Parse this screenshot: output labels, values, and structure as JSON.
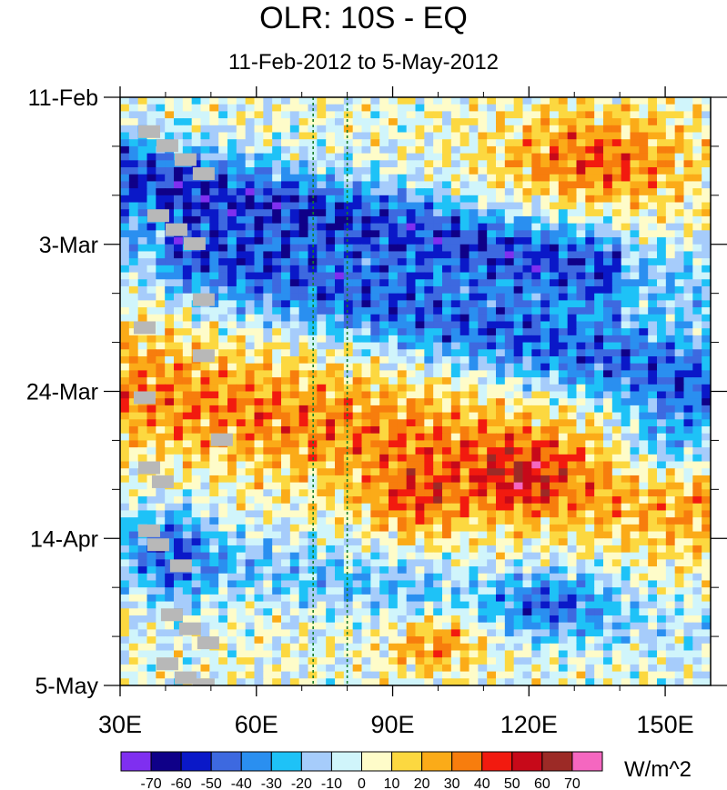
{
  "chart_data": {
    "type": "heatmap",
    "title": "OLR: 10S - EQ",
    "subtitle": "11-Feb-2012 to 5-May-2012",
    "x_axis": {
      "range": [
        30,
        160
      ],
      "ticks": [
        30,
        60,
        90,
        120,
        150
      ],
      "tick_labels": [
        "30E",
        "60E",
        "90E",
        "120E",
        "150E"
      ],
      "minor_step": 10
    },
    "y_axis": {
      "range": [
        "11-Feb-2012",
        "5-May-2012"
      ],
      "tick_labels": [
        "11-Feb",
        "3-Mar",
        "24-Mar",
        "14-Apr",
        "5-May"
      ],
      "minor_step_days": 7
    },
    "reference_lines_lon": [
      72.5,
      80
    ],
    "colorbar": {
      "units": "W/m^2",
      "levels": [
        -70,
        -60,
        -50,
        -40,
        -30,
        -20,
        -10,
        0,
        10,
        20,
        30,
        40,
        50,
        60,
        70
      ],
      "colors": [
        "#7f2ff0",
        "#0f0088",
        "#0a18c8",
        "#3d69e0",
        "#2a8ff0",
        "#1ec2f7",
        "#a6ccfb",
        "#d0f5fb",
        "#fefcc9",
        "#fcd840",
        "#fbab18",
        "#f77d0d",
        "#f21a0f",
        "#c70919",
        "#9c2a26",
        "#f567c0"
      ]
    },
    "missing_color": "#b8b8b8",
    "rows": 84,
    "cols": 66
  }
}
